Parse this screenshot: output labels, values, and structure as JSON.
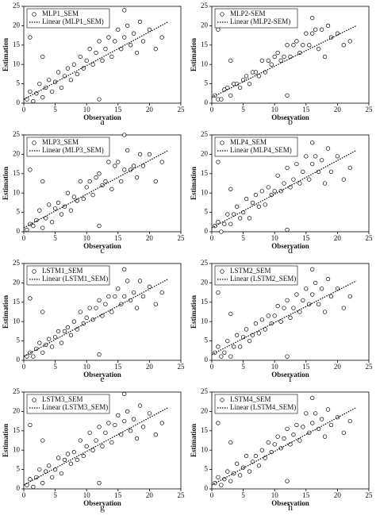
{
  "chart_data": [
    {
      "type": "scatter",
      "caption": "a",
      "x_label": "Observation",
      "y_label": "Estimation",
      "xlim": [
        0,
        25
      ],
      "ylim": [
        0,
        25
      ],
      "xticks": [
        0,
        5,
        10,
        15,
        20,
        25
      ],
      "yticks": [
        0,
        5,
        10,
        15,
        20,
        25
      ],
      "series": [
        {
          "name": "MLP1_SEM",
          "color": "#000000",
          "x": [
            0.5,
            1,
            1.5,
            2,
            2.5,
            3,
            3.5,
            4,
            4.5,
            5,
            5.5,
            6,
            6.5,
            7,
            7.5,
            8,
            8.5,
            9,
            9.5,
            10,
            10.5,
            11,
            11.5,
            12,
            12.5,
            13,
            13.5,
            14,
            14.5,
            15,
            15.5,
            16,
            16.5,
            17,
            17.5,
            18,
            18.5,
            19,
            20,
            21,
            22,
            1,
            3,
            12,
            16
          ],
          "values": [
            1,
            3,
            0.5,
            2.5,
            5,
            1.5,
            4,
            6,
            3,
            5.5,
            8,
            4,
            7,
            9,
            6,
            10,
            7.5,
            12,
            9,
            11,
            14,
            10,
            13,
            16,
            11,
            14,
            17,
            12,
            16,
            19,
            14,
            17,
            20,
            15,
            18,
            13,
            21,
            16,
            19,
            14,
            17,
            17,
            12,
            1,
            24
          ]
        },
        {
          "name": "Linear (MLP1_SEM)",
          "color": "#000000",
          "dash": "dotted",
          "x": [
            0,
            23
          ],
          "values": [
            1,
            21
          ]
        }
      ]
    },
    {
      "type": "scatter",
      "caption": "b",
      "x_label": "Observation",
      "y_label": "Estimation",
      "xlim": [
        0,
        25
      ],
      "ylim": [
        0,
        25
      ],
      "xticks": [
        0,
        5,
        10,
        15,
        20,
        25
      ],
      "yticks": [
        0,
        5,
        10,
        15,
        20,
        25
      ],
      "series": [
        {
          "name": "MLP2-SEM",
          "color": "#000000",
          "x": [
            0.5,
            1,
            1.5,
            2,
            2.5,
            3,
            3.5,
            4,
            4.5,
            5,
            5.5,
            6,
            6.5,
            7,
            7.5,
            8,
            8.5,
            9,
            9.5,
            10,
            10.5,
            11,
            11.5,
            12,
            12.5,
            13,
            13.5,
            14,
            14.5,
            15,
            15.5,
            16,
            16.5,
            17,
            17.5,
            18,
            18.5,
            19,
            20,
            21,
            22,
            1,
            3,
            12,
            16
          ],
          "values": [
            2,
            1,
            1,
            3.5,
            4,
            2,
            5,
            5,
            4,
            6,
            7,
            5,
            8,
            8,
            7,
            11,
            8,
            11,
            10,
            12,
            13,
            11,
            12,
            15,
            12,
            15,
            16,
            13,
            15,
            18,
            15,
            18,
            19,
            14,
            19,
            12,
            20,
            17,
            18,
            15,
            16,
            19,
            11,
            2,
            22
          ]
        },
        {
          "name": "Linear (MLP2-SEM)",
          "color": "#000000",
          "dash": "dotted",
          "x": [
            0,
            23
          ],
          "values": [
            1.5,
            20
          ]
        }
      ]
    },
    {
      "type": "scatter",
      "caption": "c",
      "x_label": "Observation",
      "y_label": "Estimation",
      "xlim": [
        0,
        25
      ],
      "ylim": [
        0,
        25
      ],
      "xticks": [
        0,
        5,
        10,
        15,
        20,
        25
      ],
      "yticks": [
        0,
        5,
        10,
        15,
        20,
        25
      ],
      "series": [
        {
          "name": "MLP3_SEM",
          "color": "#000000",
          "x": [
            0.5,
            1,
            1.5,
            2,
            2.5,
            3,
            3.5,
            4,
            4.5,
            5,
            5.5,
            6,
            6.5,
            7,
            7.5,
            8,
            8.5,
            9,
            9.5,
            10,
            10.5,
            11,
            11.5,
            12,
            12.5,
            13,
            13.5,
            14,
            14.5,
            15,
            15.5,
            16,
            16.5,
            17,
            17.5,
            18,
            18.5,
            19,
            20,
            21,
            22,
            1,
            3,
            12,
            16
          ],
          "values": [
            0.5,
            2,
            1.5,
            3,
            5.5,
            1,
            3.5,
            7,
            2.5,
            6,
            7.5,
            4.5,
            6.5,
            10,
            5.5,
            9,
            8,
            13,
            8.5,
            11.5,
            13,
            9.5,
            14,
            15,
            12,
            13,
            18,
            11,
            17,
            18,
            13,
            16,
            21,
            16,
            17,
            14,
            20,
            17,
            20,
            13,
            18,
            16,
            13,
            1.5,
            25
          ]
        },
        {
          "name": "Linear (MLP3_SEM)",
          "color": "#000000",
          "dash": "dotted",
          "x": [
            0,
            23
          ],
          "values": [
            1,
            21
          ]
        }
      ]
    },
    {
      "type": "scatter",
      "caption": "d",
      "x_label": "Observation",
      "y_label": "Estimation",
      "xlim": [
        0,
        25
      ],
      "ylim": [
        0,
        25
      ],
      "xticks": [
        0,
        5,
        10,
        15,
        20,
        25
      ],
      "yticks": [
        0,
        5,
        10,
        15,
        20,
        25
      ],
      "series": [
        {
          "name": "MLP4_SEM",
          "color": "#000000",
          "x": [
            0.5,
            1,
            1.5,
            2,
            2.5,
            3,
            3.5,
            4,
            4.5,
            5,
            5.5,
            6,
            6.5,
            7,
            7.5,
            8,
            8.5,
            9,
            9.5,
            10,
            10.5,
            11,
            11.5,
            12,
            12.5,
            13,
            13.5,
            14,
            14.5,
            15,
            15.5,
            16,
            16.5,
            17,
            17.5,
            18,
            18.5,
            19,
            20,
            21,
            22,
            1,
            3,
            12,
            16
          ],
          "values": [
            1.5,
            2.5,
            0,
            2,
            4.5,
            2,
            4.5,
            6.5,
            3.5,
            5,
            8.5,
            3.5,
            7.5,
            9.5,
            6.5,
            10.5,
            7,
            11.5,
            9.5,
            10.5,
            14.5,
            10.5,
            12.5,
            16.5,
            11.5,
            13.5,
            17.5,
            12.5,
            15.5,
            19.5,
            13.5,
            17.5,
            19.5,
            15.5,
            18.5,
            12.5,
            21.5,
            15.5,
            19.5,
            13.5,
            16.5,
            18,
            11,
            0.5,
            23
          ]
        },
        {
          "name": "Linear (MLP4_SEM)",
          "color": "#000000",
          "dash": "dotted",
          "x": [
            0,
            23
          ],
          "values": [
            1,
            21
          ]
        }
      ]
    },
    {
      "type": "scatter",
      "caption": "e",
      "x_label": "Observation",
      "y_label": "Estimation",
      "xlim": [
        0,
        25
      ],
      "ylim": [
        0,
        25
      ],
      "xticks": [
        0,
        5,
        10,
        15,
        20,
        25
      ],
      "yticks": [
        0,
        5,
        10,
        15,
        20,
        25
      ],
      "series": [
        {
          "name": "LSTM1_SEM",
          "color": "#000000",
          "x": [
            0.5,
            1,
            1.5,
            2,
            2.5,
            3,
            3.5,
            4,
            4.5,
            5,
            5.5,
            6,
            6.5,
            7,
            7.5,
            8,
            8.5,
            9,
            9.5,
            10,
            10.5,
            11,
            11.5,
            12,
            12.5,
            13,
            13.5,
            14,
            14.5,
            15,
            15.5,
            16,
            16.5,
            17,
            17.5,
            18,
            18.5,
            19,
            20,
            21,
            22,
            1,
            3,
            12,
            16
          ],
          "values": [
            1,
            2,
            1,
            3,
            4.5,
            2,
            4,
            5.5,
            3.5,
            6,
            7.5,
            4.5,
            7.5,
            8.5,
            6.5,
            10,
            8,
            12.5,
            9.5,
            11,
            13.5,
            10.5,
            13.5,
            15.5,
            11.5,
            14.5,
            16.5,
            12.5,
            16.5,
            18.5,
            14.5,
            16.5,
            20.5,
            15.5,
            17.5,
            13.5,
            20.5,
            16.5,
            19,
            14.5,
            17.5,
            16,
            12.5,
            1.5,
            23.5
          ]
        },
        {
          "name": "Linear (LSTM1_SEM)",
          "color": "#000000",
          "dash": "dotted",
          "x": [
            0,
            23
          ],
          "values": [
            1,
            21
          ]
        }
      ]
    },
    {
      "type": "scatter",
      "caption": "f",
      "x_label": "Observation",
      "y_label": "Estimation",
      "xlim": [
        0,
        25
      ],
      "ylim": [
        0,
        25
      ],
      "xticks": [
        0,
        5,
        10,
        15,
        20,
        25
      ],
      "yticks": [
        0,
        5,
        10,
        15,
        20,
        25
      ],
      "series": [
        {
          "name": "LSTM2_SEM",
          "color": "#000000",
          "x": [
            0.5,
            1,
            1.5,
            2,
            2.5,
            3,
            3.5,
            4,
            4.5,
            5,
            5.5,
            6,
            6.5,
            7,
            7.5,
            8,
            8.5,
            9,
            9.5,
            10,
            10.5,
            11,
            11.5,
            12,
            12.5,
            13,
            13.5,
            14,
            14.5,
            15,
            15.5,
            16,
            16.5,
            17,
            17.5,
            18,
            18.5,
            19,
            20,
            21,
            22,
            1,
            3,
            12,
            16
          ],
          "values": [
            2,
            3.5,
            1,
            2,
            5,
            1,
            3.5,
            6.5,
            3.5,
            6,
            8,
            5,
            6.5,
            9.5,
            7,
            10.5,
            8,
            11.5,
            9.5,
            11.5,
            14,
            10,
            13.5,
            15.5,
            11,
            13.5,
            17,
            12.5,
            15.5,
            18.5,
            14.5,
            17,
            20,
            14.5,
            18.5,
            12.5,
            21,
            16.5,
            18.5,
            13.5,
            16.5,
            17.5,
            12,
            1,
            23.5
          ]
        },
        {
          "name": "Linear (LSTM2_SEM)",
          "color": "#000000",
          "dash": "dotted",
          "x": [
            0,
            23
          ],
          "values": [
            1.5,
            20.5
          ]
        }
      ]
    },
    {
      "type": "scatter",
      "caption": "g",
      "x_label": "Observation",
      "y_label": "Estimation",
      "xlim": [
        0,
        25
      ],
      "ylim": [
        0,
        25
      ],
      "xticks": [
        0,
        5,
        10,
        15,
        20,
        25
      ],
      "yticks": [
        0,
        5,
        10,
        15,
        20,
        25
      ],
      "series": [
        {
          "name": "LSTM3_SEM",
          "color": "#000000",
          "x": [
            0.5,
            1,
            1.5,
            2,
            2.5,
            3,
            3.5,
            4,
            4.5,
            5,
            5.5,
            6,
            6.5,
            7,
            7.5,
            8,
            8.5,
            9,
            9.5,
            10,
            10.5,
            11,
            11.5,
            12,
            12.5,
            13,
            13.5,
            14,
            14.5,
            15,
            15.5,
            16,
            16.5,
            17,
            17.5,
            18,
            18.5,
            19,
            20,
            21,
            22,
            1,
            3,
            12,
            16
          ],
          "values": [
            1,
            2.5,
            0.5,
            3,
            5,
            1.5,
            4.5,
            6,
            3,
            5,
            8,
            4,
            7.5,
            9,
            6.5,
            9.5,
            7.5,
            12.5,
            8.5,
            11,
            14.5,
            10,
            12.5,
            16,
            11,
            14.5,
            17,
            12,
            16.5,
            19,
            14,
            17.5,
            20,
            15,
            18,
            13,
            21.5,
            16,
            19.5,
            14,
            17,
            16.5,
            12.5,
            1.5,
            24.5
          ]
        },
        {
          "name": "Linear (LSTM3_SEM)",
          "color": "#000000",
          "dash": "dotted",
          "x": [
            0,
            23
          ],
          "values": [
            1,
            21
          ]
        }
      ]
    },
    {
      "type": "scatter",
      "caption": "h",
      "x_label": "Observation",
      "y_label": "Estimation",
      "xlim": [
        0,
        25
      ],
      "ylim": [
        0,
        25
      ],
      "xticks": [
        0,
        5,
        10,
        15,
        20,
        25
      ],
      "yticks": [
        0,
        5,
        10,
        15,
        20,
        25
      ],
      "series": [
        {
          "name": "LSTM4_SEM",
          "color": "#000000",
          "x": [
            0.5,
            1,
            1.5,
            2,
            2.5,
            3,
            3.5,
            4,
            4.5,
            5,
            5.5,
            6,
            6.5,
            7,
            7.5,
            8,
            8.5,
            9,
            9.5,
            10,
            10.5,
            11,
            11.5,
            12,
            12.5,
            13,
            13.5,
            14,
            14.5,
            15,
            15.5,
            16,
            16.5,
            17,
            17.5,
            18,
            18.5,
            19,
            20,
            21,
            22,
            1,
            3,
            12,
            16
          ],
          "values": [
            1.5,
            3,
            1,
            2.5,
            4.5,
            2,
            4,
            6.5,
            3.5,
            5.5,
            8.5,
            4.5,
            7,
            8.5,
            6,
            10,
            8,
            12,
            9.5,
            11.5,
            13.5,
            10.5,
            13,
            15.5,
            11.5,
            14,
            16.5,
            12.5,
            16,
            19.5,
            14.5,
            17,
            19.5,
            15.5,
            18,
            13.5,
            20.5,
            16.5,
            18.5,
            14.5,
            17.5,
            17,
            12,
            2,
            23.5
          ]
        },
        {
          "name": "Linear (LSTM4_SEM)",
          "color": "#000000",
          "dash": "dotted",
          "x": [
            0,
            23
          ],
          "values": [
            1,
            21
          ]
        }
      ]
    }
  ]
}
